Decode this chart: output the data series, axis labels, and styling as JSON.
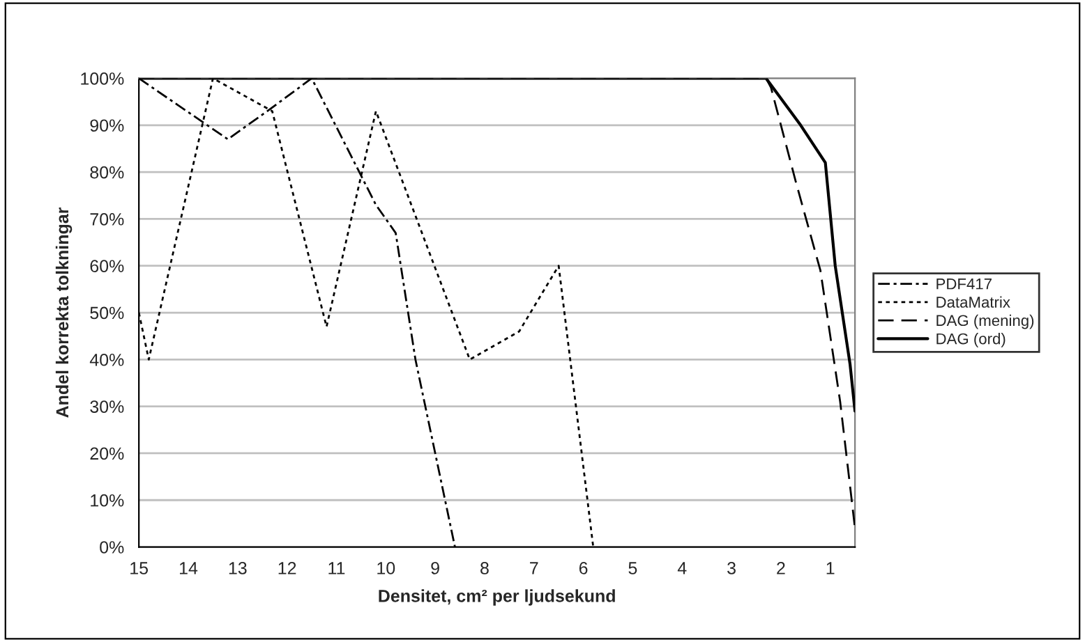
{
  "chart_data": {
    "type": "line",
    "xlabel": "Densitet, cm² per ljudsekund",
    "ylabel": "Andel korrekta tolkningar",
    "xlim": [
      15,
      0.5
    ],
    "xticks": [
      15,
      14,
      13,
      12,
      11,
      10,
      9,
      8,
      7,
      6,
      5,
      4,
      3,
      2,
      1
    ],
    "ylim": [
      0,
      100
    ],
    "yticks": [
      {
        "value": 0,
        "label": "0%"
      },
      {
        "value": 10,
        "label": "10%"
      },
      {
        "value": 20,
        "label": "20%"
      },
      {
        "value": 30,
        "label": "30%"
      },
      {
        "value": 40,
        "label": "40%"
      },
      {
        "value": 50,
        "label": "50%"
      },
      {
        "value": 60,
        "label": "60%"
      },
      {
        "value": 70,
        "label": "70%"
      },
      {
        "value": 80,
        "label": "80%"
      },
      {
        "value": 90,
        "label": "90%"
      },
      {
        "value": 100,
        "label": "100%"
      }
    ],
    "grid": "y",
    "legend": "right",
    "series": [
      {
        "name": "PDF417",
        "color": "#000000",
        "line_style": "dashdot",
        "x": [
          15,
          13.2,
          12.4,
          11.5,
          10.2,
          9.8,
          9.4,
          8.6
        ],
        "values": [
          100,
          87,
          93,
          100,
          73,
          67,
          40,
          0
        ]
      },
      {
        "name": "DataMatrix",
        "color": "#000000",
        "line_style": "dotted",
        "x": [
          15,
          14.8,
          13.5,
          12.3,
          11.2,
          10.2,
          8.3,
          7.3,
          6.5,
          5.8
        ],
        "values": [
          50,
          40,
          100,
          93,
          47,
          93,
          40,
          46,
          60,
          0
        ]
      },
      {
        "name": "DAG (mening)",
        "color": "#000000",
        "line_style": "dashed",
        "x": [
          15,
          2.3,
          2.2,
          1.7,
          1.2,
          0.8,
          0.5
        ],
        "values": [
          100,
          100,
          98,
          78,
          59,
          31,
          4
        ]
      },
      {
        "name": "DAG (ord)",
        "color": "#000000",
        "line_style": "solid",
        "x": [
          15,
          2.3,
          1.6,
          1.1,
          0.9,
          0.6,
          0.5
        ],
        "values": [
          100,
          100,
          90,
          82,
          60,
          39,
          29
        ]
      }
    ]
  }
}
